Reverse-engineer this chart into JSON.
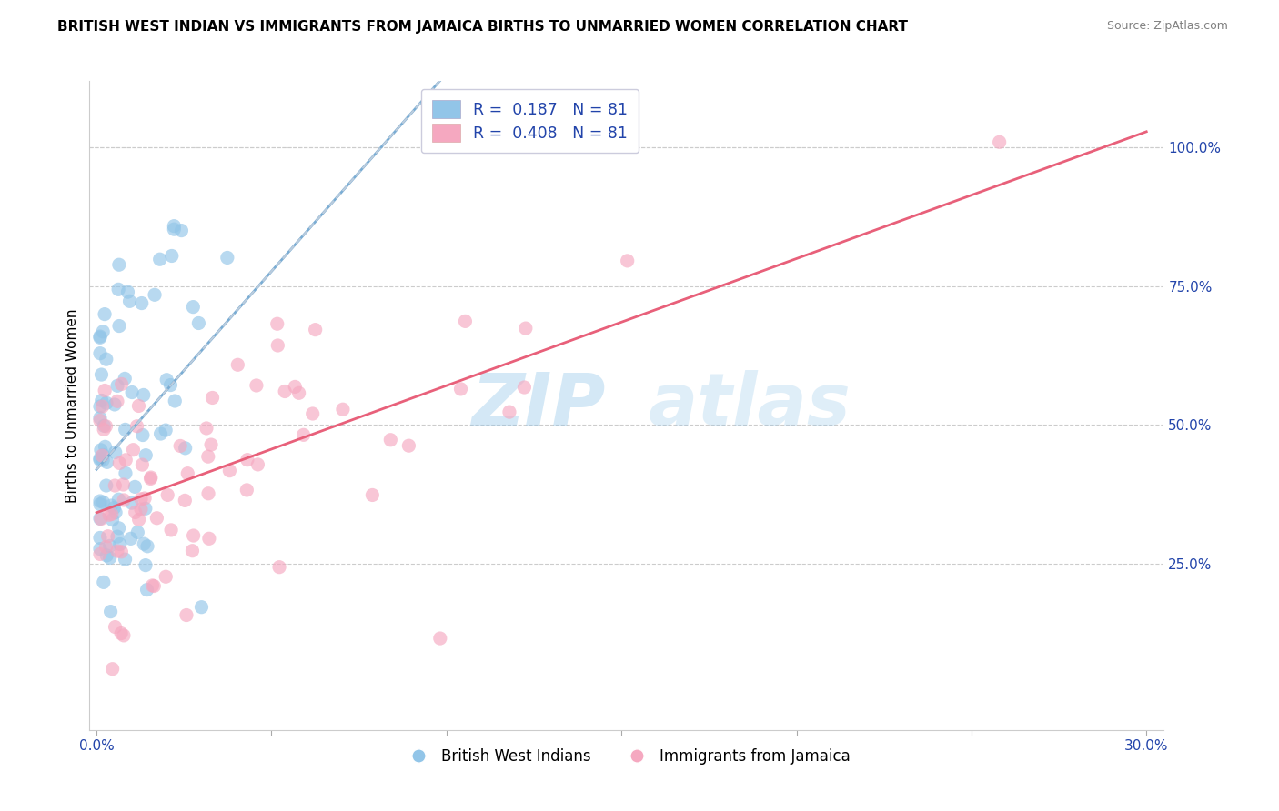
{
  "title": "BRITISH WEST INDIAN VS IMMIGRANTS FROM JAMAICA BIRTHS TO UNMARRIED WOMEN CORRELATION CHART",
  "source_text": "Source: ZipAtlas.com",
  "ylabel": "Births to Unmarried Women",
  "watermark_zip": "ZIP",
  "watermark_atlas": "atlas",
  "xlim_min": -0.002,
  "xlim_max": 0.305,
  "ylim_min": -0.05,
  "ylim_max": 1.12,
  "xticks": [
    0.0,
    0.05,
    0.1,
    0.15,
    0.2,
    0.25,
    0.3
  ],
  "xtick_labels": [
    "0.0%",
    "",
    "",
    "",
    "",
    "",
    "30.0%"
  ],
  "ytick_vals": [
    0.25,
    0.5,
    0.75,
    1.0
  ],
  "ytick_labels": [
    "25.0%",
    "50.0%",
    "75.0%",
    "100.0%"
  ],
  "R_blue": 0.187,
  "R_pink": 0.408,
  "N_blue": 81,
  "N_pink": 81,
  "blue_color": "#92C5E8",
  "pink_color": "#F5A8C0",
  "line_blue_color": "#7AADD4",
  "line_pink_color": "#E8607A",
  "legend_label_blue": "British West Indians",
  "legend_label_pink": "Immigrants from Jamaica",
  "title_fontsize": 11,
  "tick_fontsize": 11,
  "axis_label_fontsize": 11,
  "scatter_size": 120,
  "scatter_alpha": 0.65,
  "grid_color": "#CCCCCC",
  "grid_alpha": 0.7,
  "grid_lw": 0.8
}
